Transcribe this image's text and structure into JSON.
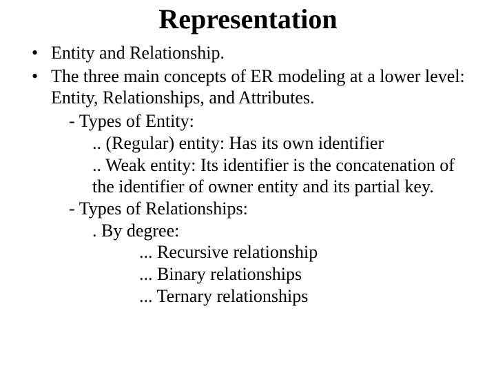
{
  "title": "Representation",
  "bullets": {
    "b1": "Entity and Relationship.",
    "b2": "The three main concepts of ER modeling at a lower level: Entity, Relationships, and Attributes.",
    "b2_s1": "- Types of Entity:",
    "b2_s1_a": ".. (Regular) entity: Has its own identifier",
    "b2_s1_b": ".. Weak entity: Its identifier is the concatenation of the identifier of owner entity and its partial key.",
    "b2_s2": "- Types of Relationships:",
    "b2_s2_a": ". By degree:",
    "b2_s2_a1": "... Recursive relationship",
    "b2_s2_a2": "... Binary relationships",
    "b2_s2_a3": "... Ternary relationships"
  },
  "style": {
    "background_color": "#ffffff",
    "text_color": "#000000",
    "title_fontsize": 40,
    "title_fontweight": "bold",
    "body_fontsize": 26,
    "font_family": "Times New Roman"
  }
}
